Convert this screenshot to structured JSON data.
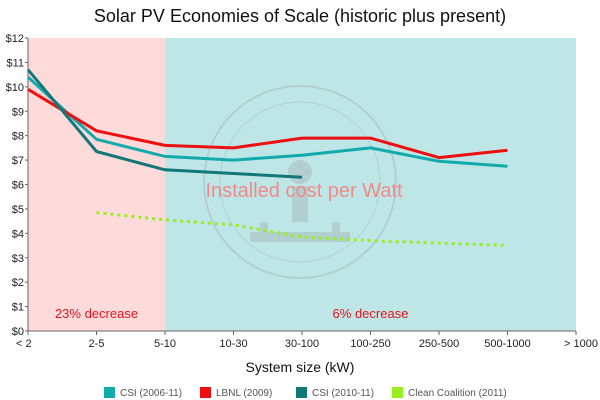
{
  "chart_data": {
    "type": "line",
    "title": "Solar PV Economies of Scale (historic plus present)",
    "xlabel": "System size (kW)",
    "ylabel": "",
    "categories": [
      "< 2",
      "2-5",
      "5-10",
      "10-30",
      "30-100",
      "100-250",
      "250-500",
      "500-1000",
      "> 1000"
    ],
    "ylim": [
      0,
      12
    ],
    "yticks": [
      "$0",
      "$1",
      "$2",
      "$3",
      "$4",
      "$5",
      "$6",
      "$7",
      "$8",
      "$9",
      "$10",
      "$11",
      "$12"
    ],
    "regions": [
      {
        "from": 0,
        "to": 2,
        "color": "#ffdada",
        "label": "23% decrease"
      },
      {
        "from": 2,
        "to": 8,
        "color": "#bfe6e6",
        "label": "6% decrease"
      }
    ],
    "overlay_text": "Installed cost per Watt",
    "watermark": "THE SUNRISES PROJECT",
    "series": [
      {
        "name": "CSI (2006-11)",
        "color": "#12aaaa",
        "dash": false,
        "points": [
          [
            0,
            10.4
          ],
          [
            1,
            7.85
          ],
          [
            2,
            7.15
          ],
          [
            3,
            7.0
          ],
          [
            4,
            7.2
          ],
          [
            5,
            7.5
          ],
          [
            6,
            6.95
          ],
          [
            7,
            6.75
          ]
        ]
      },
      {
        "name": "LBNL (2009)",
        "color": "#ee1010",
        "dash": false,
        "points": [
          [
            0,
            9.9
          ],
          [
            1,
            8.2
          ],
          [
            2,
            7.6
          ],
          [
            3,
            7.5
          ],
          [
            4,
            7.9
          ],
          [
            5,
            7.9
          ],
          [
            6,
            7.1
          ],
          [
            7,
            7.4
          ]
        ]
      },
      {
        "name": "CSI (2010-11)",
        "color": "#117777",
        "dash": false,
        "points": [
          [
            0,
            10.7
          ],
          [
            1,
            7.35
          ],
          [
            2,
            6.6
          ],
          [
            3,
            6.45
          ],
          [
            4,
            6.3
          ]
        ]
      },
      {
        "name": "Clean Coalition (2011)",
        "color": "#99ee22",
        "dash": true,
        "points": [
          [
            1,
            4.85
          ],
          [
            2,
            4.55
          ],
          [
            3,
            4.35
          ],
          [
            4,
            3.85
          ],
          [
            5,
            3.7
          ],
          [
            6,
            3.6
          ],
          [
            7,
            3.5
          ]
        ]
      }
    ]
  }
}
